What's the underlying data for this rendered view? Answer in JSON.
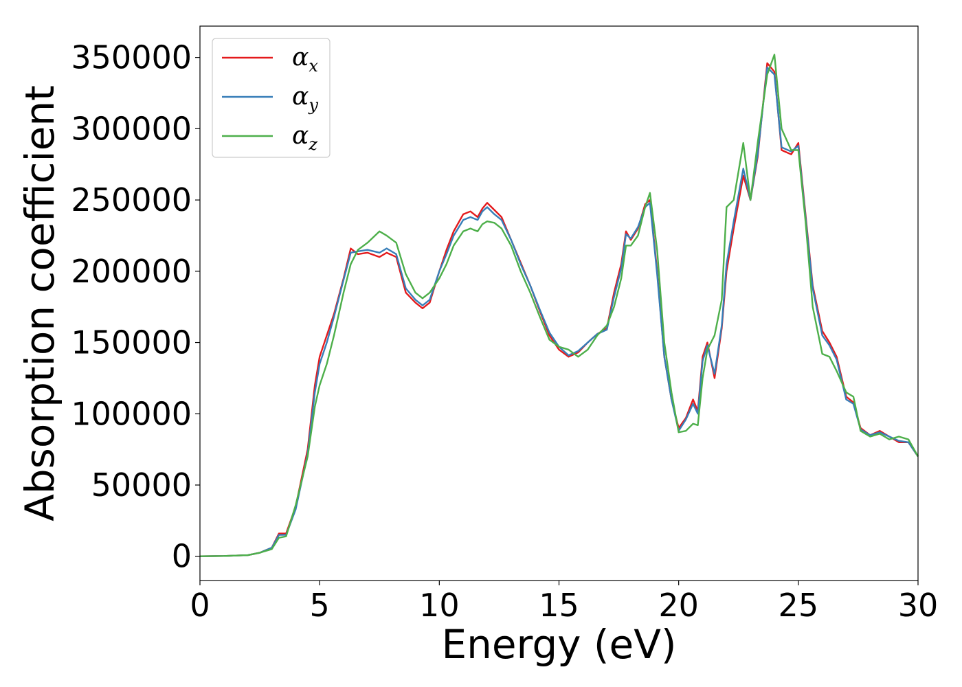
{
  "chart_data": {
    "type": "line",
    "xlabel": "Energy (eV)",
    "ylabel": "Absorption coefficient",
    "xlim": [
      0,
      30
    ],
    "ylim": [
      -17000,
      372000
    ],
    "xticks": [
      "0",
      "5",
      "10",
      "15",
      "20",
      "25",
      "30"
    ],
    "yticks": [
      "0",
      "50000",
      "100000",
      "150000",
      "200000",
      "250000",
      "300000",
      "350000"
    ],
    "grid": false,
    "legend_position": "top-left",
    "series": [
      {
        "name": "α",
        "subscript": "x",
        "color": "#e41a1c",
        "x": [
          0,
          1,
          2,
          2.5,
          3,
          3.3,
          3.6,
          4,
          4.5,
          4.8,
          5,
          5.3,
          5.6,
          6,
          6.3,
          6.6,
          7,
          7.5,
          7.8,
          8.2,
          8.6,
          9,
          9.3,
          9.6,
          10,
          10.3,
          10.6,
          11,
          11.3,
          11.6,
          11.8,
          12,
          12.3,
          12.6,
          13,
          13.4,
          13.8,
          14.2,
          14.6,
          15,
          15.4,
          15.8,
          16.2,
          16.6,
          17,
          17.3,
          17.6,
          17.8,
          18,
          18.3,
          18.6,
          18.8,
          19.1,
          19.4,
          19.7,
          20,
          20.3,
          20.6,
          20.8,
          21,
          21.2,
          21.5,
          21.8,
          22,
          22.3,
          22.7,
          23,
          23.3,
          23.7,
          24,
          24.3,
          24.7,
          25,
          25.3,
          25.6,
          26,
          26.3,
          26.6,
          27,
          27.3,
          27.6,
          28,
          28.4,
          28.8,
          29.2,
          29.6,
          30
        ],
        "y": [
          0,
          200,
          800,
          2500,
          6000,
          16000,
          16000,
          35000,
          75000,
          120000,
          140000,
          155000,
          170000,
          195000,
          216000,
          212000,
          213000,
          210000,
          213000,
          210000,
          185000,
          178000,
          174000,
          178000,
          200000,
          215000,
          228000,
          240000,
          242000,
          238000,
          244000,
          248000,
          243000,
          238000,
          222000,
          206000,
          190000,
          172000,
          155000,
          145000,
          140000,
          143000,
          150000,
          156000,
          160000,
          185000,
          205000,
          228000,
          222000,
          230000,
          247000,
          250000,
          200000,
          140000,
          110000,
          90000,
          97000,
          110000,
          102000,
          140000,
          150000,
          125000,
          160000,
          200000,
          230000,
          267000,
          250000,
          280000,
          346000,
          340000,
          285000,
          282000,
          290000,
          240000,
          190000,
          158000,
          150000,
          140000,
          112000,
          108000,
          90000,
          85000,
          88000,
          84000,
          80000,
          80000,
          70000
        ]
      },
      {
        "name": "α",
        "subscript": "y",
        "color": "#377eb8",
        "x": [
          0,
          1,
          2,
          2.5,
          3,
          3.3,
          3.6,
          4,
          4.5,
          4.8,
          5,
          5.3,
          5.6,
          6,
          6.3,
          6.6,
          7,
          7.5,
          7.8,
          8.2,
          8.6,
          9,
          9.3,
          9.6,
          10,
          10.3,
          10.6,
          11,
          11.3,
          11.6,
          11.8,
          12,
          12.3,
          12.6,
          13,
          13.4,
          13.8,
          14.2,
          14.6,
          15,
          15.4,
          15.8,
          16.2,
          16.6,
          17,
          17.3,
          17.6,
          17.8,
          18,
          18.3,
          18.6,
          18.8,
          19.1,
          19.4,
          19.7,
          20,
          20.3,
          20.6,
          20.8,
          21,
          21.2,
          21.5,
          21.8,
          22,
          22.3,
          22.7,
          23,
          23.3,
          23.7,
          24,
          24.3,
          24.7,
          25,
          25.3,
          25.6,
          26,
          26.3,
          26.6,
          27,
          27.3,
          27.6,
          28,
          28.4,
          28.8,
          29.2,
          29.6,
          30
        ],
        "y": [
          0,
          200,
          800,
          2500,
          6000,
          15000,
          15000,
          33000,
          72000,
          115000,
          135000,
          150000,
          168000,
          194000,
          213000,
          214000,
          215000,
          213000,
          216000,
          212000,
          188000,
          180000,
          176000,
          180000,
          200000,
          212000,
          225000,
          236000,
          238000,
          236000,
          242000,
          245000,
          240000,
          236000,
          222000,
          205000,
          190000,
          173000,
          157000,
          147000,
          141000,
          144000,
          150000,
          156000,
          159000,
          182000,
          202000,
          226000,
          223000,
          231000,
          245000,
          248000,
          198000,
          140000,
          110000,
          88000,
          96000,
          107000,
          100000,
          137000,
          148000,
          128000,
          162000,
          205000,
          235000,
          272000,
          250000,
          282000,
          343000,
          338000,
          287000,
          284000,
          288000,
          238000,
          188000,
          155000,
          148000,
          138000,
          110000,
          107000,
          89000,
          85000,
          87000,
          84000,
          81000,
          80000,
          70000
        ]
      },
      {
        "name": "α",
        "subscript": "z",
        "color": "#4daf4a",
        "x": [
          0,
          1,
          2,
          2.5,
          3,
          3.3,
          3.6,
          4,
          4.5,
          4.8,
          5,
          5.3,
          5.6,
          6,
          6.3,
          6.6,
          7,
          7.5,
          7.8,
          8.2,
          8.6,
          9,
          9.3,
          9.6,
          10,
          10.3,
          10.6,
          11,
          11.3,
          11.6,
          11.8,
          12,
          12.3,
          12.6,
          13,
          13.4,
          13.8,
          14.2,
          14.6,
          15,
          15.4,
          15.8,
          16.2,
          16.6,
          17,
          17.3,
          17.6,
          17.8,
          18,
          18.3,
          18.6,
          18.8,
          19.1,
          19.4,
          19.7,
          20,
          20.3,
          20.6,
          20.8,
          21,
          21.2,
          21.5,
          21.8,
          22,
          22.3,
          22.7,
          23,
          23.3,
          23.7,
          24,
          24.3,
          24.7,
          25,
          25.3,
          25.6,
          26,
          26.3,
          26.6,
          27,
          27.3,
          27.6,
          28,
          28.4,
          28.8,
          29.2,
          29.6,
          30
        ],
        "y": [
          0,
          200,
          800,
          2500,
          5000,
          13000,
          14000,
          36000,
          70000,
          105000,
          120000,
          135000,
          155000,
          185000,
          205000,
          215000,
          220000,
          228000,
          225000,
          220000,
          198000,
          185000,
          181000,
          185000,
          195000,
          205000,
          218000,
          228000,
          230000,
          228000,
          233000,
          235000,
          234000,
          230000,
          218000,
          200000,
          185000,
          168000,
          152000,
          147000,
          145000,
          140000,
          145000,
          155000,
          162000,
          175000,
          195000,
          218000,
          218000,
          225000,
          245000,
          255000,
          215000,
          150000,
          115000,
          87000,
          88000,
          93000,
          92000,
          125000,
          145000,
          155000,
          180000,
          245000,
          250000,
          290000,
          250000,
          290000,
          338000,
          352000,
          300000,
          285000,
          285000,
          235000,
          175000,
          142000,
          140000,
          130000,
          115000,
          112000,
          88000,
          84000,
          86000,
          82000,
          84000,
          82000,
          70000
        ]
      }
    ]
  }
}
